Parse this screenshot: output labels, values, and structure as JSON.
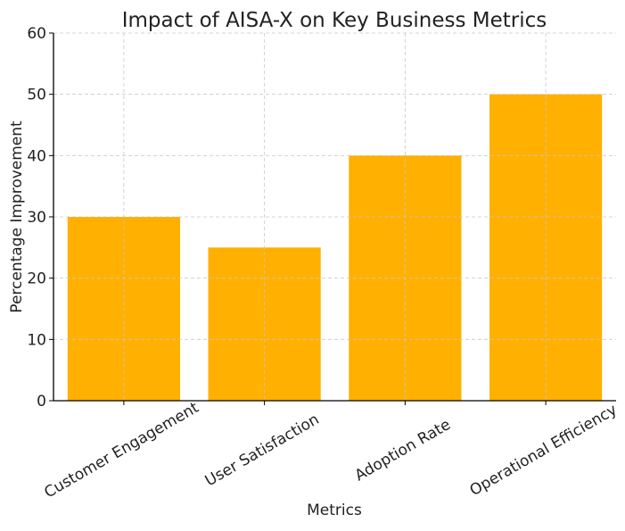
{
  "chart_data": {
    "type": "bar",
    "title": "Impact of AISA-X on Key Business Metrics",
    "xlabel": "Metrics",
    "ylabel": "Percentage Improvement",
    "categories": [
      "Customer Engagement",
      "User Satisfaction",
      "Adoption Rate",
      "Operational Efficiency"
    ],
    "values": [
      30,
      25,
      40,
      50
    ],
    "ylim": [
      0,
      60
    ],
    "yticks": [
      0,
      10,
      20,
      30,
      40,
      50,
      60
    ],
    "grid": true,
    "bar_color": "#FFB000",
    "grid_color": "#c8c8c8"
  }
}
